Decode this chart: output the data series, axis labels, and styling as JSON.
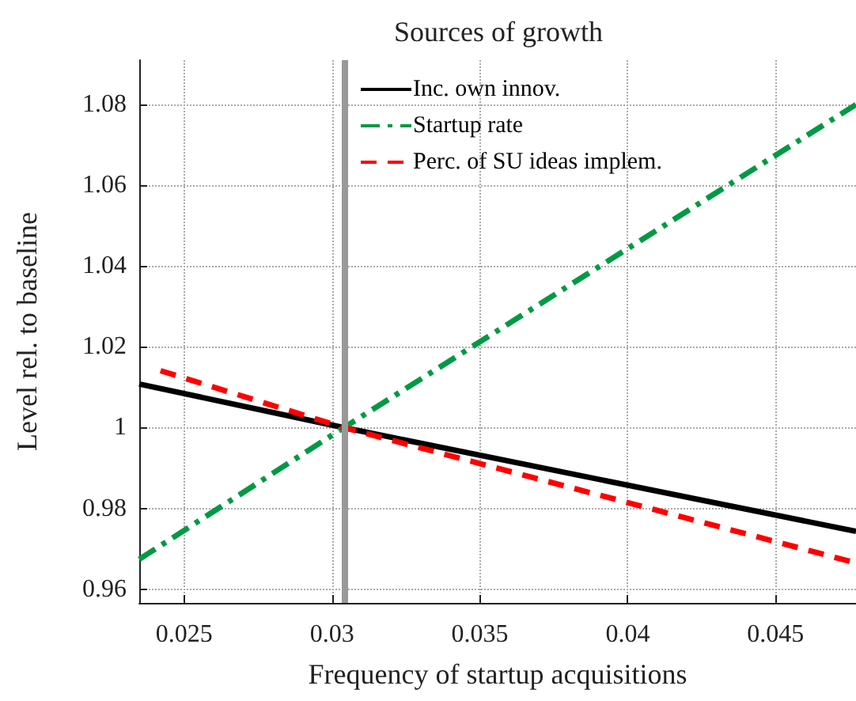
{
  "chart_data": {
    "type": "line",
    "title": "Sources of growth",
    "xlabel": "Frequency of startup acquisitions",
    "ylabel": "Level rel. to baseline",
    "series": [
      {
        "name": "Inc. own innov.",
        "color": "#000000",
        "line_style": "solid",
        "x": [
          0.02348,
          0.0304,
          0.04772
        ],
        "values": [
          1.0108,
          1,
          0.9743
        ]
      },
      {
        "name": "Startup rate",
        "color": "#009a44",
        "line_style": "dashdot",
        "x": [
          0.02348,
          0.0304,
          0.04772
        ],
        "values": [
          0.9674,
          1,
          1.08
        ]
      },
      {
        "name": "Perc. of SU ideas implem.",
        "color": "#ff0000",
        "line_style": "dashed",
        "x": [
          0.0242,
          0.0304,
          0.04772
        ],
        "values": [
          1.0141,
          1,
          0.9665
        ]
      }
    ],
    "xlim": [
      0.02348,
      0.04772
    ],
    "xticks": [
      0.025,
      0.03,
      0.035,
      0.04,
      0.045
    ],
    "ylim": [
      0.9566,
      1.091
    ],
    "yticks": [
      0.96,
      0.98,
      1,
      1.02,
      1.04,
      1.06,
      1.08
    ],
    "ref_lines": [
      {
        "axis": "x",
        "value": 0.0304,
        "color": "#999999"
      }
    ],
    "grid": true,
    "legend": "top",
    "marker": "none"
  }
}
